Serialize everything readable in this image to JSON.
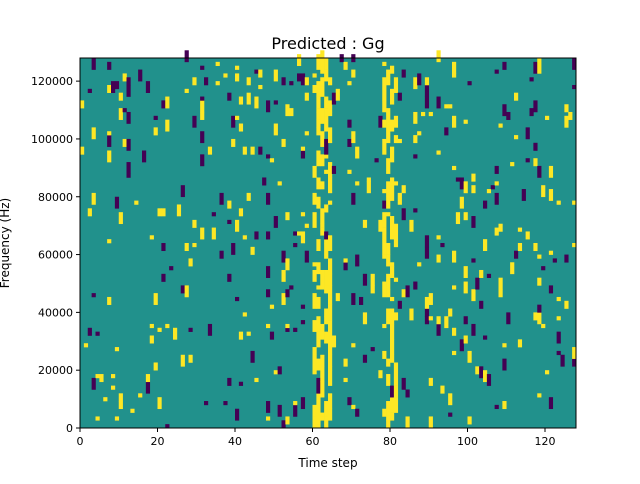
{
  "chart_data": {
    "type": "heatmap",
    "title": "Predicted : Gg",
    "xlabel": "Time step",
    "ylabel": "Frequency (Hz)",
    "xlim": [
      0,
      128
    ],
    "ylim": [
      0,
      128000
    ],
    "x_ticks": [
      0,
      20,
      40,
      60,
      80,
      100,
      120
    ],
    "y_ticks": [
      0,
      20000,
      40000,
      60000,
      80000,
      100000,
      120000
    ],
    "grid": false,
    "n_time_steps": 128,
    "n_freq_bins": 96,
    "colormap": {
      "low": "#440154",
      "mid": "#21918c",
      "high": "#fde725"
    },
    "dense_high_columns": [
      60,
      61,
      62,
      63,
      64,
      78,
      79,
      80,
      81
    ]
  }
}
